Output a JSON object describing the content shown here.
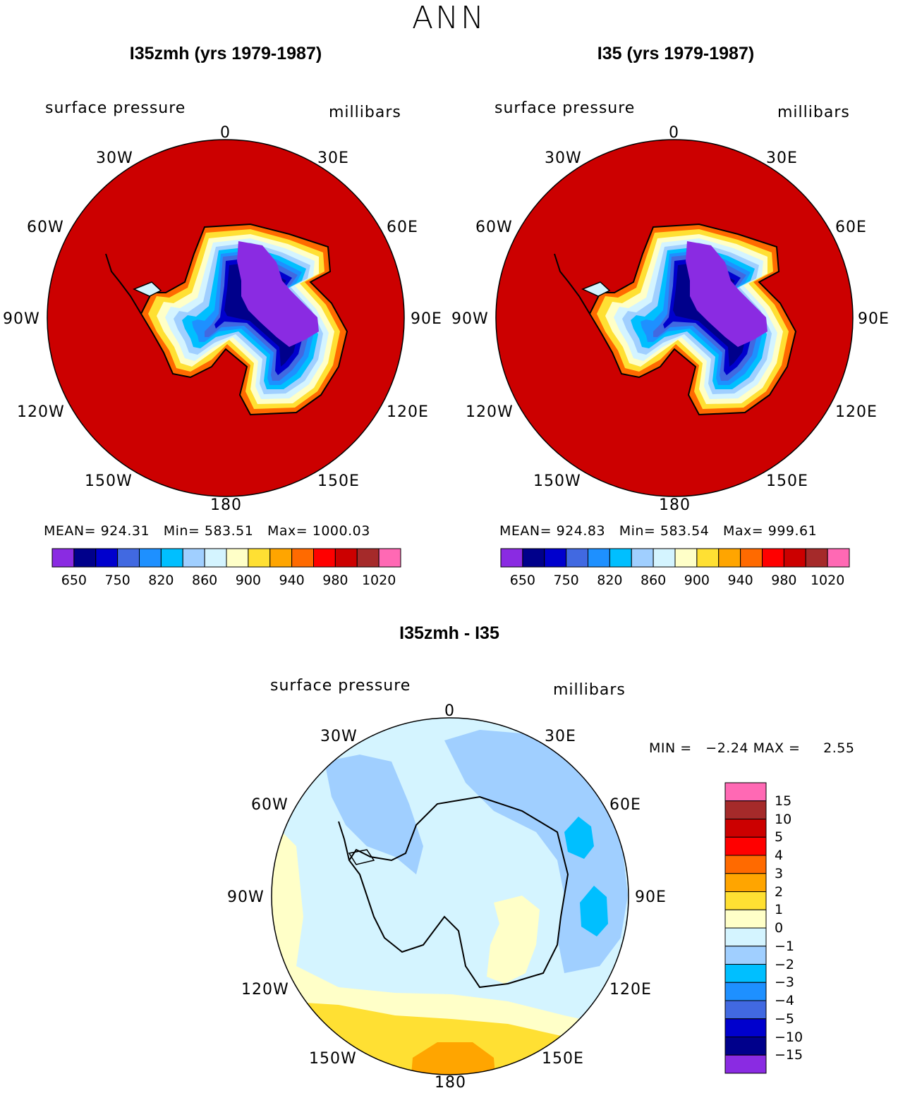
{
  "figure_title": "ANN",
  "colors": {
    "abs_scale": [
      "#8a2be2",
      "#00008b",
      "#0000cd",
      "#4169e1",
      "#1e90ff",
      "#00bfff",
      "#a0cfff",
      "#d4f4ff",
      "#ffffc8",
      "#ffe033",
      "#ffa500",
      "#ff6a00",
      "#ff0000",
      "#cc0000",
      "#a52a2a",
      "#ff69b4"
    ],
    "diff_scale": [
      "#8a2be2",
      "#00008b",
      "#0000cd",
      "#4169e1",
      "#1e90ff",
      "#00bfff",
      "#a0cfff",
      "#d4f4ff",
      "#ffffc8",
      "#ffe033",
      "#ffa500",
      "#ff6a00",
      "#ff0000",
      "#cc0000",
      "#a52a2a",
      "#ff69b4"
    ]
  },
  "panels": [
    {
      "title": "I35zmh (yrs 1979-1987)",
      "field": "surface pressure",
      "units": "millibars",
      "lon_labels": {
        "n": "0",
        "ne30": "30E",
        "ne60": "60E",
        "e": "90E",
        "se120": "120E",
        "se150": "150E",
        "s": "180",
        "sw150": "150W",
        "sw120": "120W",
        "w": "90W",
        "nw60": "60W",
        "nw30": "30W"
      },
      "mean_label": "MEAN=",
      "mean": "924.31",
      "min_label": "Min=",
      "min": "583.51",
      "max_label": "Max=",
      "max": "1000.03",
      "colorbar_ticks": [
        "650",
        "750",
        "820",
        "860",
        "900",
        "940",
        "980",
        "1020"
      ]
    },
    {
      "title": "I35 (yrs 1979-1987)",
      "field": "surface pressure",
      "units": "millibars",
      "lon_labels": {
        "n": "0",
        "ne30": "30E",
        "ne60": "60E",
        "e": "90E",
        "se120": "120E",
        "se150": "150E",
        "s": "180",
        "sw150": "150W",
        "sw120": "120W",
        "w": "90W",
        "nw60": "60W",
        "nw30": "30W"
      },
      "mean_label": "MEAN=",
      "mean": "924.83",
      "min_label": "Min=",
      "min": "583.54",
      "max_label": "Max=",
      "max": "999.61",
      "colorbar_ticks": [
        "650",
        "750",
        "820",
        "860",
        "900",
        "940",
        "980",
        "1020"
      ]
    }
  ],
  "diff_panel": {
    "title": "I35zmh - I35",
    "field": "surface pressure",
    "units": "millibars",
    "lon_labels": {
      "n": "0",
      "ne30": "30E",
      "ne60": "60E",
      "e": "90E",
      "se120": "120E",
      "se150": "150E",
      "s": "180",
      "sw150": "150W",
      "sw120": "120W",
      "w": "90W",
      "nw60": "60W",
      "nw30": "30W"
    },
    "min_label": "MIN =",
    "min": "−2.24",
    "max_label": "MAX =",
    "max": "2.55",
    "colorbar_ticks": [
      "15",
      "10",
      "5",
      "4",
      "3",
      "2",
      "1",
      "0",
      "−1",
      "−2",
      "−3",
      "−4",
      "−5",
      "−10",
      "−15"
    ]
  }
}
